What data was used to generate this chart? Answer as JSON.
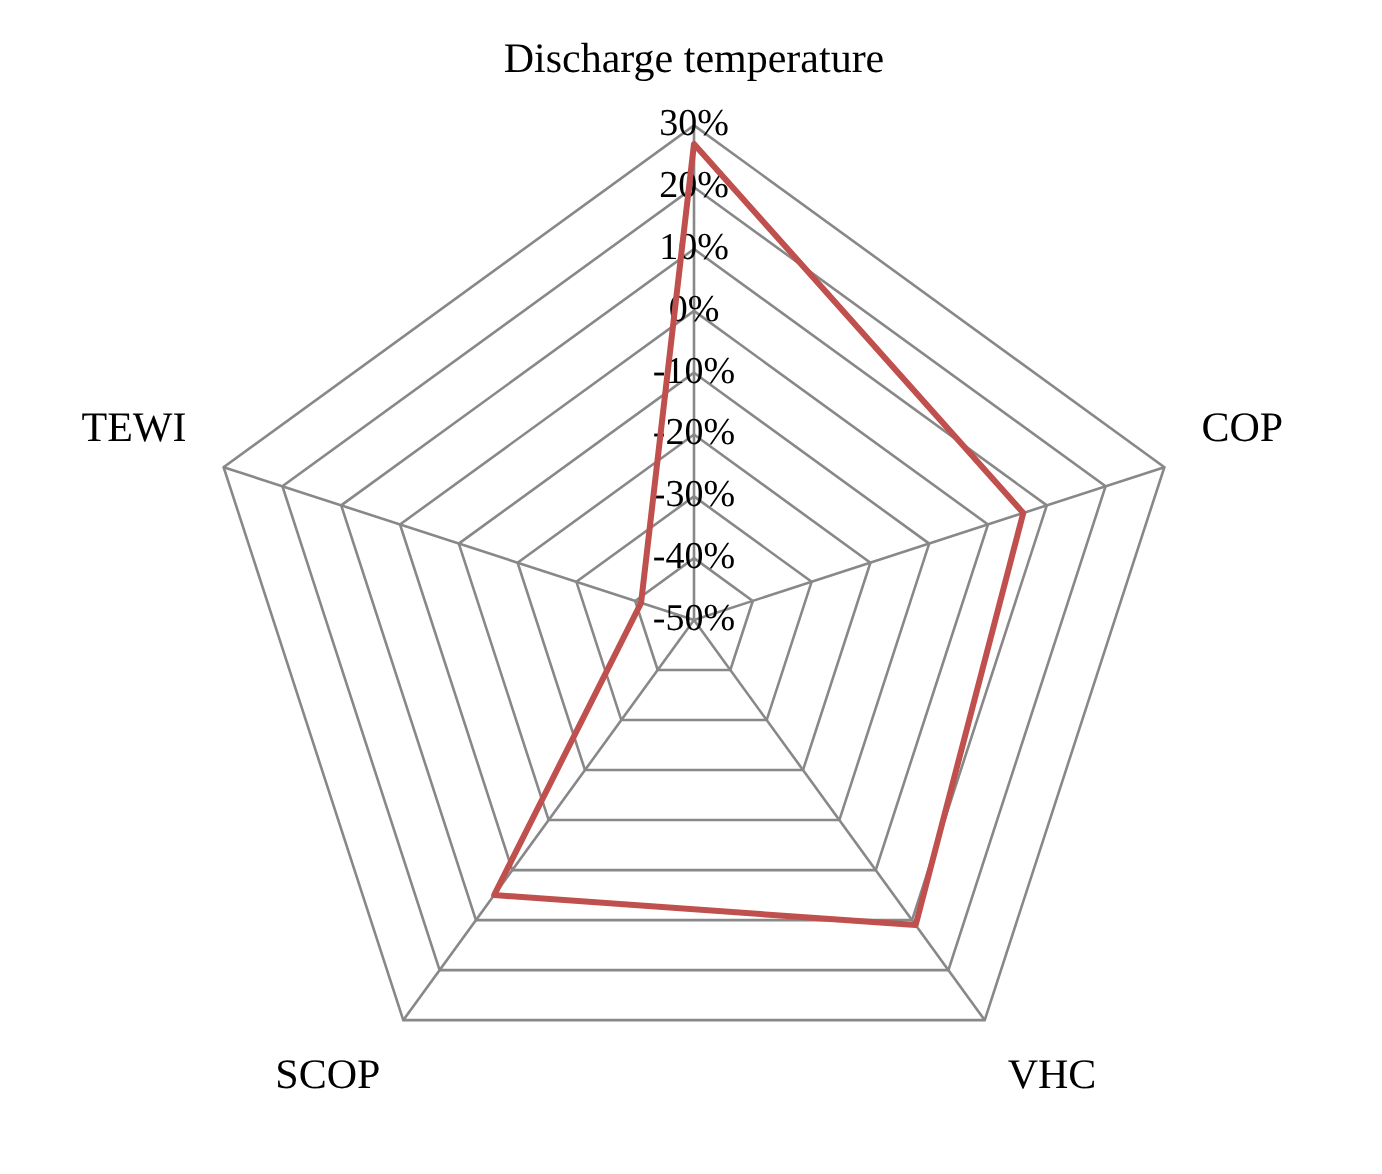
{
  "chart_data": {
    "type": "radar",
    "categories": [
      "Discharge temperature",
      "COP",
      "VHC",
      "SCOP",
      "TEWI"
    ],
    "series": [
      {
        "color": "#c0504d",
        "values": [
          27,
          6,
          11,
          5,
          -41
        ]
      }
    ],
    "ylim": [
      -50,
      30
    ],
    "yticks": [
      {
        "value": -50,
        "label": "-50%"
      },
      {
        "value": -40,
        "label": "-40%"
      },
      {
        "value": -30,
        "label": "-30%"
      },
      {
        "value": -20,
        "label": "-20%"
      },
      {
        "value": -10,
        "label": "-10%"
      },
      {
        "value": 0,
        "label": "0%"
      },
      {
        "value": 10,
        "label": "10%"
      },
      {
        "value": 20,
        "label": "20%"
      },
      {
        "value": 30,
        "label": "30%"
      }
    ],
    "grid": true,
    "legend": false,
    "marker": "none"
  }
}
